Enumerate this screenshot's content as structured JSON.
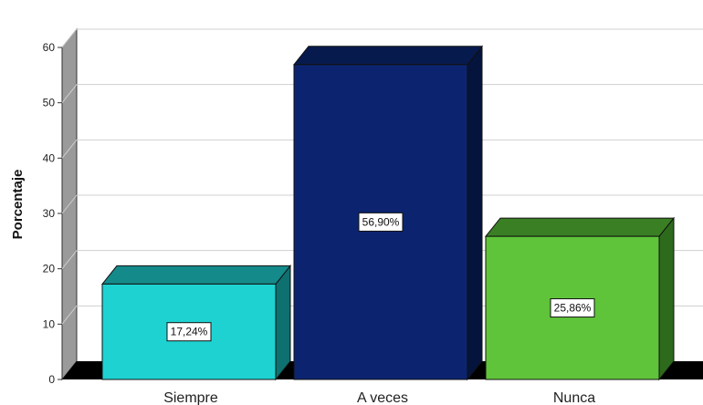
{
  "chart_data": {
    "type": "bar",
    "title": "",
    "xlabel": "",
    "ylabel": "Porcentaje",
    "categories": [
      "Siempre",
      "A veces",
      "Nunca"
    ],
    "values": [
      17.24,
      56.9,
      25.86
    ],
    "data_labels": [
      "17,24%",
      "56,90%",
      "25,86%"
    ],
    "ylim": [
      0,
      60
    ],
    "yticks": [
      0,
      10,
      20,
      30,
      40,
      50,
      60
    ],
    "grid": true,
    "legend": "none",
    "style": "3d",
    "colors": [
      {
        "front": "#1ED2D2",
        "top": "#158A8A",
        "side": "#0F7070"
      },
      {
        "front": "#0C2470",
        "top": "#071A4E",
        "side": "#05143C"
      },
      {
        "front": "#5FC43A",
        "top": "#3B7F24",
        "side": "#2E6A1C"
      }
    ]
  }
}
